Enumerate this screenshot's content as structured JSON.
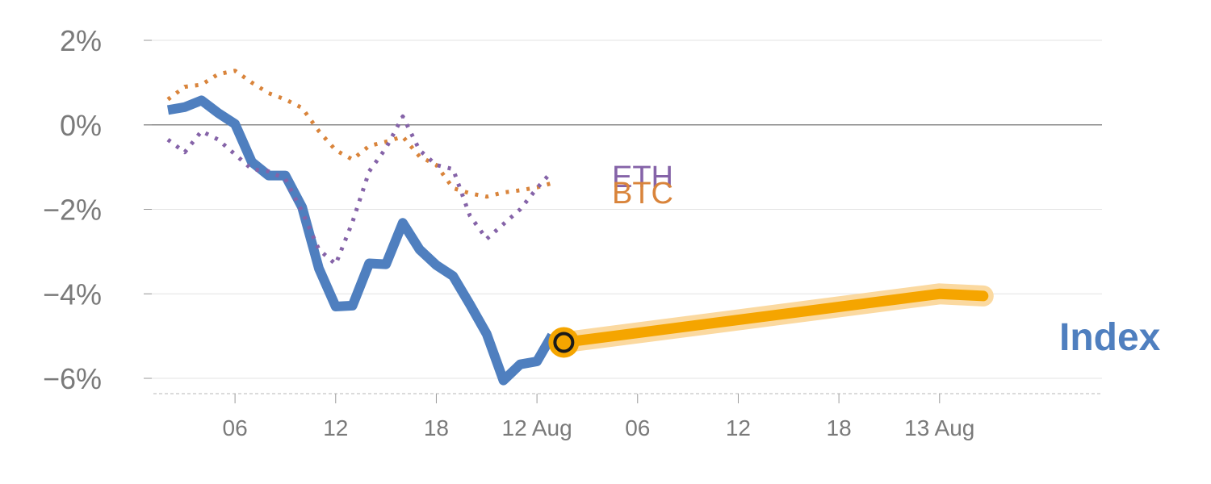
{
  "chart_data": {
    "type": "line",
    "title": "",
    "xlabel": "",
    "ylabel": "",
    "ylim": [
      -6.3,
      2.0
    ],
    "y_ticks": [
      2,
      0,
      -2,
      -4,
      -6
    ],
    "y_tick_labels": [
      "2%",
      "0%",
      "−2%",
      "−4%",
      "−6%"
    ],
    "x_range_hours": [
      0,
      54
    ],
    "x_ticks": [
      {
        "hour": 4,
        "label": "06"
      },
      {
        "hour": 10,
        "label": "12"
      },
      {
        "hour": 16,
        "label": "18"
      },
      {
        "hour": 22,
        "label": "12 Aug"
      },
      {
        "hour": 28,
        "label": "06"
      },
      {
        "hour": 34,
        "label": "12"
      },
      {
        "hour": 40,
        "label": "18"
      },
      {
        "hour": 46,
        "label": "13 Aug"
      }
    ],
    "grid": true,
    "series": [
      {
        "name": "Index",
        "color": "#4f7fbf",
        "style": "solid",
        "x": [
          0,
          1,
          2,
          3,
          4,
          5,
          6,
          7,
          8,
          9,
          10,
          11,
          12,
          13,
          14,
          15,
          16,
          17,
          18,
          19,
          20,
          21,
          22,
          22.9
        ],
        "y": [
          0.35,
          0.42,
          0.58,
          0.28,
          0.02,
          -0.88,
          -1.2,
          -1.2,
          -1.95,
          -3.4,
          -4.3,
          -4.28,
          -3.28,
          -3.3,
          -2.32,
          -2.95,
          -3.32,
          -3.58,
          -4.25,
          -4.95,
          -6.05,
          -5.67,
          -5.6,
          -4.98
        ]
      },
      {
        "name": "BTC",
        "color": "#d9843b",
        "style": "dotted",
        "x": [
          0,
          1,
          2,
          3,
          4,
          5,
          6,
          7,
          8,
          9,
          10,
          11,
          12,
          13,
          14,
          15,
          16,
          17,
          18,
          19,
          20,
          21,
          22,
          22.9
        ],
        "y": [
          0.6,
          0.9,
          0.95,
          1.2,
          1.28,
          1.0,
          0.75,
          0.6,
          0.4,
          -0.15,
          -0.6,
          -0.82,
          -0.5,
          -0.4,
          -0.28,
          -0.75,
          -0.95,
          -1.5,
          -1.62,
          -1.7,
          -1.6,
          -1.55,
          -1.48,
          -1.38
        ]
      },
      {
        "name": "ETH",
        "color": "#8563a8",
        "style": "dotted",
        "x": [
          0,
          1,
          2,
          3,
          4,
          5,
          6,
          7,
          8,
          9,
          10,
          11,
          12,
          13,
          14,
          15,
          16,
          17,
          18,
          19,
          20,
          21,
          22,
          22.9
        ],
        "y": [
          -0.35,
          -0.65,
          -0.15,
          -0.35,
          -0.7,
          -1.05,
          -1.1,
          -1.28,
          -2.05,
          -2.95,
          -3.3,
          -2.3,
          -1.1,
          -0.55,
          0.2,
          -0.6,
          -0.95,
          -1.05,
          -2.15,
          -2.7,
          -2.35,
          -2.0,
          -1.5,
          -1.1
        ]
      },
      {
        "name": "Index projection",
        "color": "#f5a500",
        "style": "solid",
        "x": [
          23.6,
          46,
          48.6
        ],
        "y": [
          -5.15,
          -4.0,
          -4.05
        ]
      }
    ],
    "marker": {
      "x": 23.6,
      "y": -5.15,
      "color": "#f5a500"
    },
    "labels": {
      "index": "Index",
      "btc": "BTC",
      "eth": "ETH"
    },
    "colors": {
      "index": "#4f7fbf",
      "btc": "#d9843b",
      "eth": "#8563a8",
      "projection": "#f5a500",
      "projection_halo": "#fbd9a0",
      "axis_text": "#7a7a7a",
      "zero_line": "#8a8a8a",
      "grid": "#e3e3e3"
    }
  }
}
